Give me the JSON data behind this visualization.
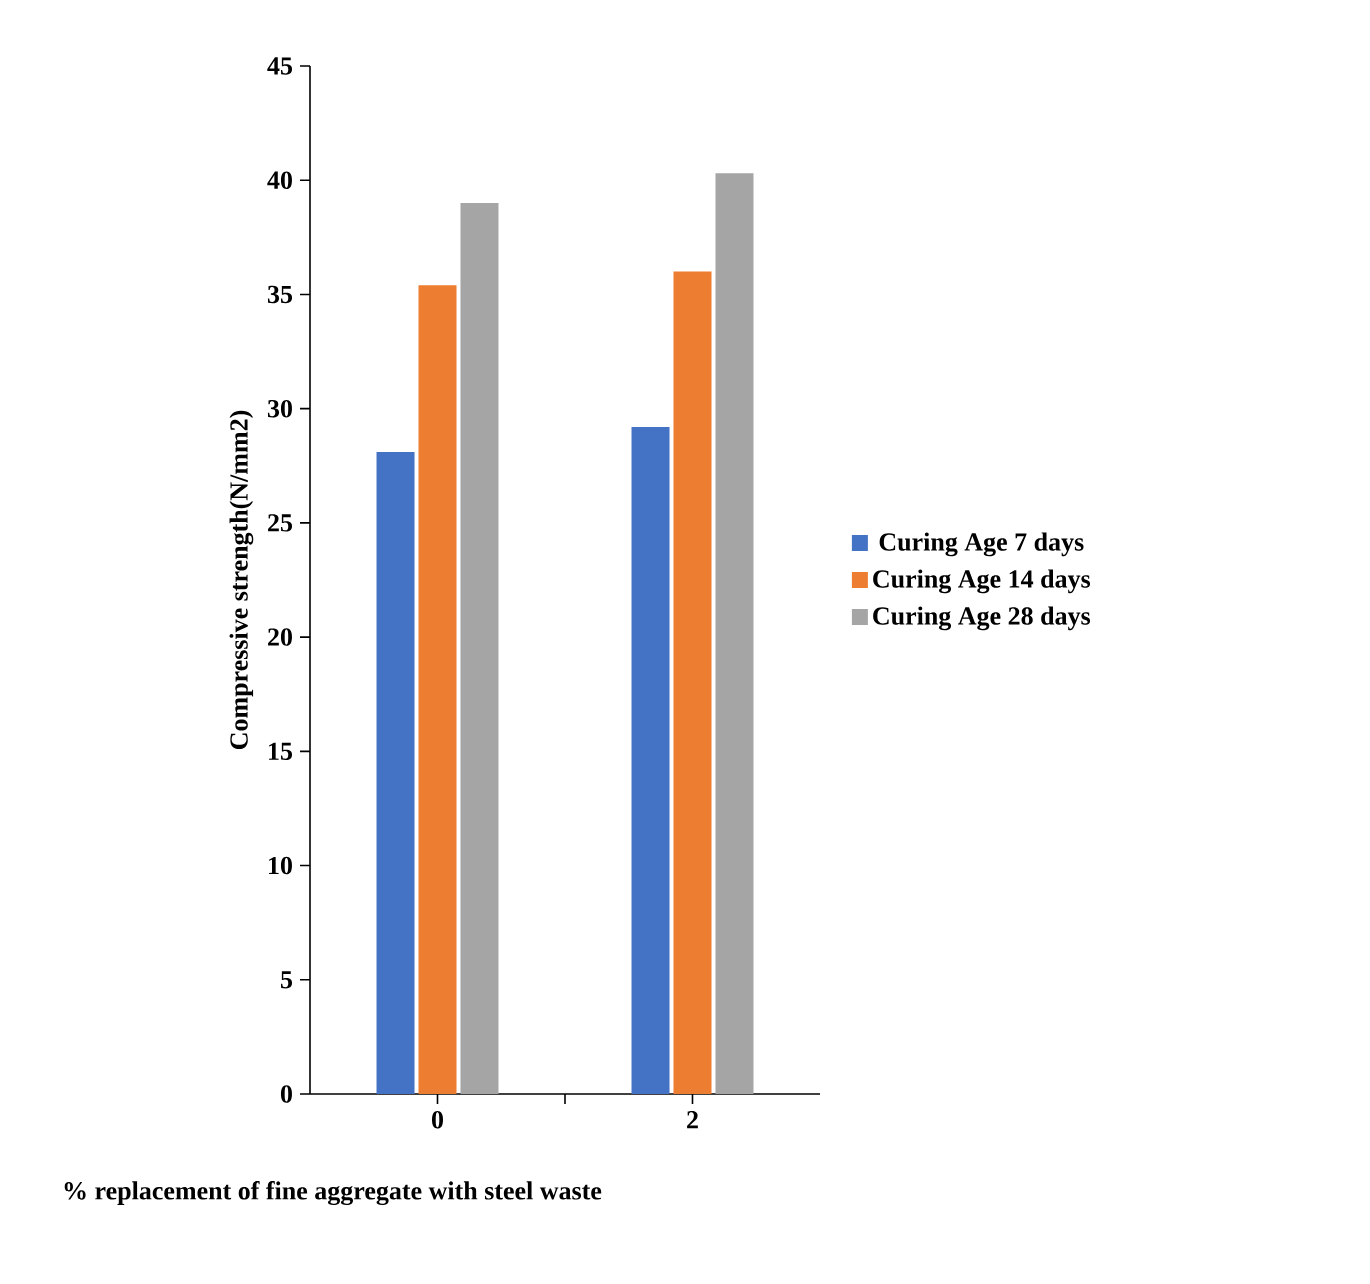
{
  "chart_data": {
    "type": "bar",
    "xlabel": "% replacement  of fine aggregate with steel waste",
    "ylabel": "Compressive  strength(N/mm2)",
    "categories": [
      "0",
      "2"
    ],
    "series": [
      {
        "name": "Curing Age 7 days",
        "color": "#4472c4",
        "values": [
          28.1,
          29.2
        ]
      },
      {
        "name": "Curing Age 14 days",
        "color": "#ed7d31",
        "values": [
          35.4,
          36.0
        ]
      },
      {
        "name": "Curing Age 28 days",
        "color": "#a5a5a5",
        "values": [
          39.0,
          40.3
        ]
      }
    ],
    "ylim": [
      0,
      45
    ],
    "yticks": [
      0,
      5,
      10,
      15,
      20,
      25,
      30,
      35,
      40,
      45
    ],
    "grid": false,
    "legend": "right"
  }
}
